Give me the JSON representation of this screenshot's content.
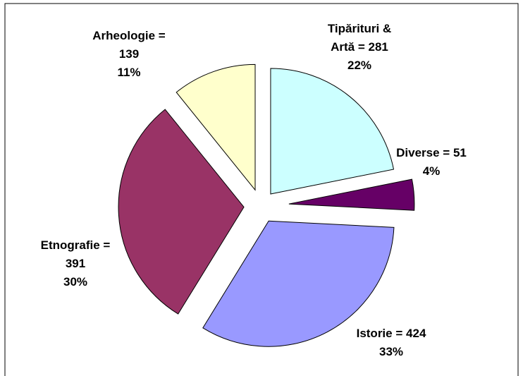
{
  "chart_data": {
    "type": "pie",
    "categories": [
      "Tipărituri & Artă",
      "Diverse",
      "Istorie",
      "Etnografie",
      "Arheologie"
    ],
    "values": [
      281,
      51,
      424,
      391,
      139
    ],
    "separator": "=",
    "percents": [
      22,
      4,
      33,
      30,
      11
    ],
    "percent_labels": [
      "22%",
      "4%",
      "33%",
      "30%",
      "11%"
    ],
    "colors": [
      "#ccffff",
      "#660066",
      "#9999ff",
      "#993366",
      "#ffffcc"
    ],
    "exploded": true
  }
}
